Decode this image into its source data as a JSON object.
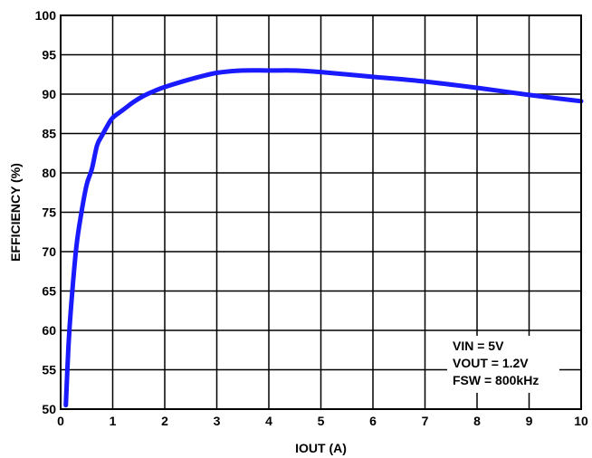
{
  "chart_data": {
    "type": "line",
    "title": "",
    "xlabel": "IOUT (A)",
    "ylabel": "EFFICIENCY (%)",
    "xlim": [
      0,
      10
    ],
    "ylim": [
      50,
      100
    ],
    "xticks": [
      0,
      1,
      2,
      3,
      4,
      5,
      6,
      7,
      8,
      9,
      10
    ],
    "yticks": [
      50,
      55,
      60,
      65,
      70,
      75,
      80,
      85,
      90,
      95,
      100
    ],
    "grid": true,
    "series": [
      {
        "name": "",
        "color": "#1a1aff",
        "x": [
          0.1,
          0.15,
          0.2,
          0.3,
          0.4,
          0.5,
          0.6,
          0.7,
          0.8,
          0.9,
          1.0,
          1.2,
          1.4,
          1.6,
          1.8,
          2.0,
          2.5,
          3.0,
          3.5,
          4.0,
          4.5,
          5.0,
          6.0,
          7.0,
          8.0,
          9.0,
          10.0
        ],
        "y": [
          50.5,
          58.0,
          63.0,
          70.5,
          75.0,
          78.5,
          80.5,
          83.5,
          84.8,
          86.0,
          87.0,
          88.0,
          89.0,
          89.8,
          90.4,
          90.9,
          91.9,
          92.7,
          93.0,
          93.0,
          93.0,
          92.8,
          92.2,
          91.6,
          90.8,
          89.9,
          89.1
        ]
      }
    ],
    "annotation": {
      "lines": [
        "VIN = 5V",
        "VOUT = 1.2V",
        "FSW = 800kHz"
      ]
    }
  }
}
